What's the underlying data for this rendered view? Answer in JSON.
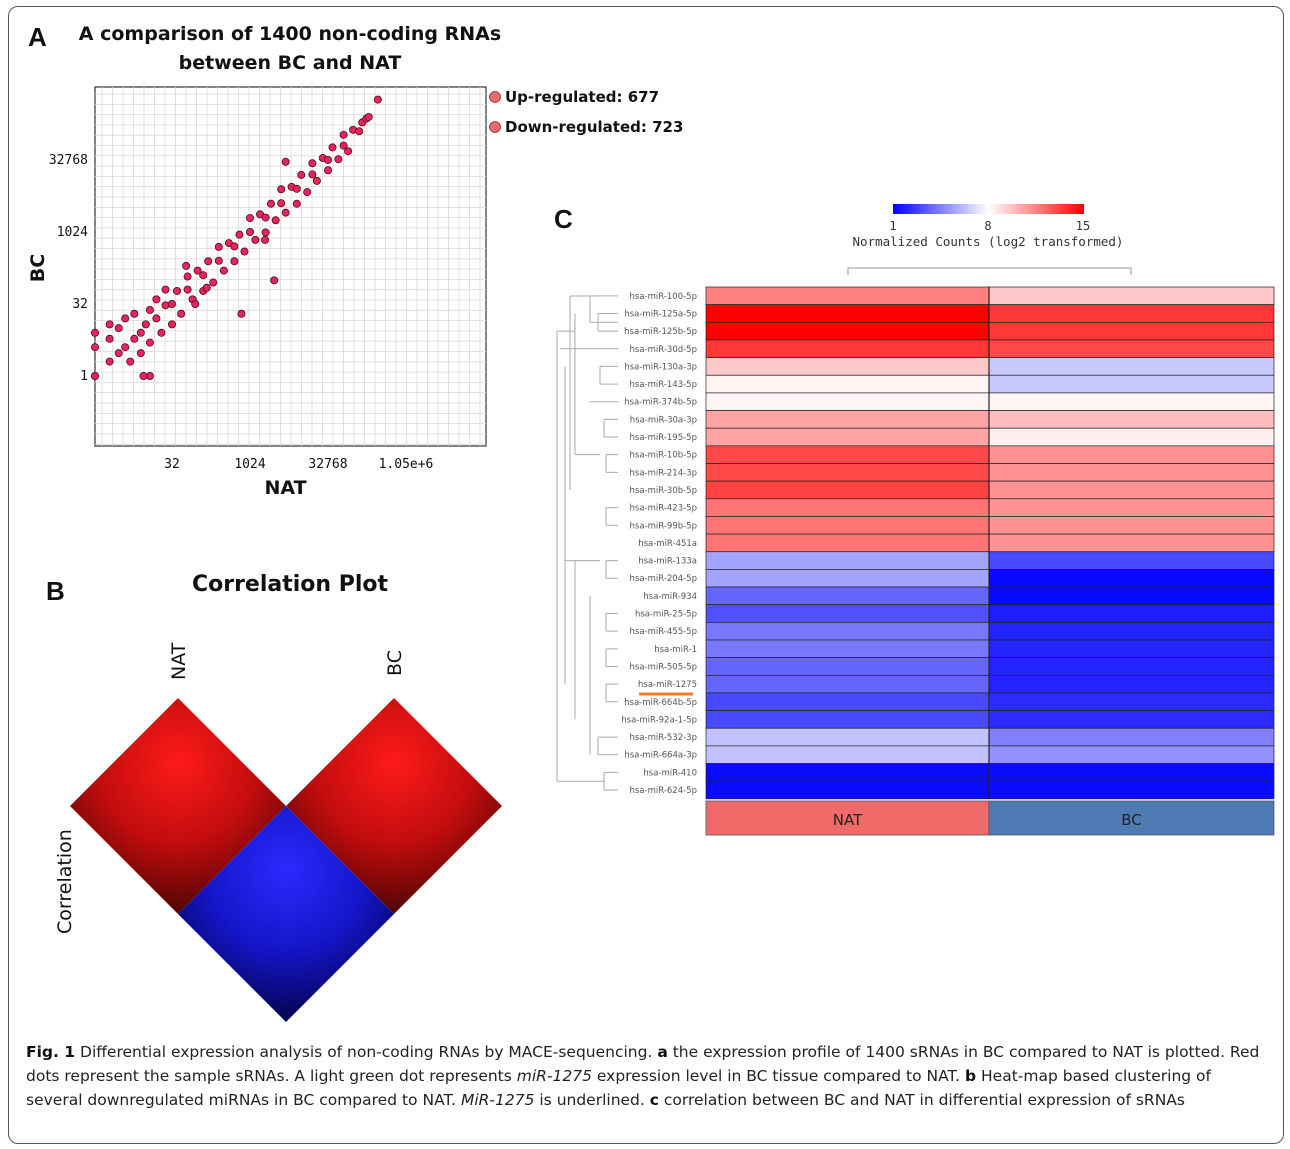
{
  "panel_labels": {
    "a": "A",
    "b": "B",
    "c": "C"
  },
  "chart_data": [
    {
      "type": "scatter",
      "panel": "A",
      "title_line1": "A comparison of 1400 non-coding RNAs",
      "title_line2": "between BC and NAT",
      "xlabel": "NAT",
      "ylabel": "BC",
      "scale": "log2",
      "x_ticks": [
        "32",
        "1024",
        "32768",
        "1.05e+6"
      ],
      "y_ticks": [
        "1",
        "32",
        "1024",
        "32768"
      ],
      "legend": [
        "Up-regulated: 677",
        "Down-regulated: 723"
      ],
      "legend_placement": "right",
      "grid": true,
      "point_color": "#e8245f",
      "points": [
        [
          1,
          1
        ],
        [
          1,
          4
        ],
        [
          1,
          8
        ],
        [
          2,
          2
        ],
        [
          2,
          6
        ],
        [
          2,
          12
        ],
        [
          3,
          3
        ],
        [
          3,
          10
        ],
        [
          4,
          4
        ],
        [
          4,
          16
        ],
        [
          5,
          2
        ],
        [
          6,
          6
        ],
        [
          6,
          20
        ],
        [
          8,
          8
        ],
        [
          8,
          3
        ],
        [
          10,
          12
        ],
        [
          12,
          5
        ],
        [
          12,
          24
        ],
        [
          16,
          16
        ],
        [
          16,
          40
        ],
        [
          20,
          8
        ],
        [
          24,
          30
        ],
        [
          32,
          32
        ],
        [
          32,
          12
        ],
        [
          40,
          60
        ],
        [
          48,
          20
        ],
        [
          64,
          64
        ],
        [
          64,
          120
        ],
        [
          80,
          40
        ],
        [
          100,
          160
        ],
        [
          128,
          128
        ],
        [
          128,
          60
        ],
        [
          160,
          250
        ],
        [
          200,
          90
        ],
        [
          256,
          256
        ],
        [
          256,
          500
        ],
        [
          320,
          160
        ],
        [
          400,
          600
        ],
        [
          512,
          512
        ],
        [
          512,
          250
        ],
        [
          640,
          900
        ],
        [
          800,
          400
        ],
        [
          1024,
          1024
        ],
        [
          1024,
          2000
        ],
        [
          1300,
          700
        ],
        [
          1600,
          2400
        ],
        [
          2048,
          2048
        ],
        [
          2048,
          1000
        ],
        [
          2600,
          4000
        ],
        [
          3200,
          1800
        ],
        [
          4096,
          4096
        ],
        [
          4096,
          8000
        ],
        [
          5000,
          2600
        ],
        [
          6500,
          9000
        ],
        [
          8192,
          8192
        ],
        [
          8192,
          4000
        ],
        [
          10000,
          16000
        ],
        [
          13000,
          7000
        ],
        [
          16384,
          16384
        ],
        [
          16384,
          28000
        ],
        [
          20000,
          12000
        ],
        [
          26000,
          36000
        ],
        [
          32768,
          32768
        ],
        [
          32768,
          20000
        ],
        [
          40000,
          60000
        ],
        [
          52000,
          34000
        ],
        [
          65536,
          65536
        ],
        [
          65536,
          110000
        ],
        [
          80000,
          50000
        ],
        [
          100000,
          140000
        ],
        [
          131072,
          131072
        ],
        [
          150000,
          200000
        ],
        [
          180000,
          240000
        ],
        [
          200000,
          260000
        ],
        [
          3000,
          100
        ],
        [
          700,
          20
        ],
        [
          12,
          1
        ],
        [
          1,
          1
        ],
        [
          9,
          1
        ],
        [
          24,
          64
        ],
        [
          60,
          200
        ],
        [
          90,
          32
        ],
        [
          150,
          70
        ],
        [
          2000,
          700
        ],
        [
          5000,
          30000
        ],
        [
          300000,
          600000
        ]
      ]
    },
    {
      "type": "heatmap",
      "panel": "B",
      "title": "Correlation Plot",
      "row_labels": [
        "NAT",
        "BC"
      ],
      "col_labels": [
        "NAT",
        "BC"
      ],
      "side_label": "Correlation",
      "cells": [
        {
          "pair": "NAT-NAT",
          "color": "red"
        },
        {
          "pair": "BC-BC",
          "color": "red"
        },
        {
          "pair": "NAT-BC",
          "color": "blue"
        }
      ]
    },
    {
      "type": "heatmap",
      "panel": "C",
      "colorbar": {
        "ticks": [
          "1",
          "8",
          "15"
        ],
        "label": "Normalized Counts (log2 transformed)",
        "min": 1,
        "mid": 8,
        "max": 15
      },
      "columns": [
        "NAT",
        "BC"
      ],
      "column_colors": [
        "#f06a6a",
        "#4f7bb5"
      ],
      "highlighted_row": "hsa-miR-1275",
      "highlight_color": "#f07b2b",
      "rows": [
        {
          "label": "hsa-miR-100-5p",
          "values": [
            11.5,
            9.5
          ]
        },
        {
          "label": "hsa-miR-125a-5p",
          "values": [
            15,
            13.5
          ]
        },
        {
          "label": "hsa-miR-125b-5p",
          "values": [
            15,
            13.5
          ]
        },
        {
          "label": "hsa-miR-30d-5p",
          "values": [
            13.5,
            13
          ]
        },
        {
          "label": "hsa-miR-130a-3p",
          "values": [
            9.5,
            6.5
          ]
        },
        {
          "label": "hsa-miR-143-5p",
          "values": [
            8.3,
            6.5
          ]
        },
        {
          "label": "hsa-miR-374b-5p",
          "values": [
            8.3,
            8.3
          ]
        },
        {
          "label": "hsa-miR-30a-3p",
          "values": [
            10.5,
            9.8
          ]
        },
        {
          "label": "hsa-miR-195-5p",
          "values": [
            10.5,
            8.4
          ]
        },
        {
          "label": "hsa-miR-10b-5p",
          "values": [
            13,
            11
          ]
        },
        {
          "label": "hsa-miR-214-3p",
          "values": [
            13,
            11
          ]
        },
        {
          "label": "hsa-miR-30b-5p",
          "values": [
            13.2,
            11
          ]
        },
        {
          "label": "hsa-miR-423-5p",
          "values": [
            11.8,
            11
          ]
        },
        {
          "label": "hsa-miR-99b-5p",
          "values": [
            11.8,
            11
          ]
        },
        {
          "label": "hsa-miR-451a",
          "values": [
            11.8,
            11
          ]
        },
        {
          "label": "hsa-miR-133a",
          "values": [
            5.5,
            3
          ]
        },
        {
          "label": "hsa-miR-204-5p",
          "values": [
            5.5,
            1.2
          ]
        },
        {
          "label": "hsa-miR-934",
          "values": [
            3.8,
            1.2
          ]
        },
        {
          "label": "hsa-miR-25-5p",
          "values": [
            3.2,
            1.8
          ]
        },
        {
          "label": "hsa-miR-455-5p",
          "values": [
            4.3,
            2
          ]
        },
        {
          "label": "hsa-miR-1",
          "values": [
            4.3,
            2
          ]
        },
        {
          "label": "hsa-miR-505-5p",
          "values": [
            3.8,
            2
          ]
        },
        {
          "label": "hsa-miR-1275",
          "values": [
            3.8,
            2
          ]
        },
        {
          "label": "hsa-miR-664b-5p",
          "values": [
            3,
            2.2
          ]
        },
        {
          "label": "hsa-miR-92a-1-5p",
          "values": [
            3,
            2.2
          ]
        },
        {
          "label": "hsa-miR-532-3p",
          "values": [
            6.3,
            4.5
          ]
        },
        {
          "label": "hsa-miR-664a-3p",
          "values": [
            6.3,
            5
          ]
        },
        {
          "label": "hsa-miR-410",
          "values": [
            1.3,
            1.3
          ]
        },
        {
          "label": "hsa-miR-624-5p",
          "values": [
            1.3,
            1.3
          ]
        }
      ]
    }
  ],
  "caption": {
    "fig_label": "Fig. 1",
    "text1": " Differential expression analysis of non-coding RNAs by MACE-sequencing. ",
    "a": "a",
    "text2": " the expression profile of 1400 sRNAs in BC compared to NAT is plotted. Red dots represent the sample sRNAs. A light green dot represents ",
    "mir1": "miR-1275",
    "text3": " expression level in BC tissue compared to NAT. ",
    "b": "b",
    "text4": " Heat-map based clustering of several downregulated miRNAs in BC compared to NAT. ",
    "mir2": "MiR-1275",
    "text5": " is underlined. ",
    "c": "c",
    "text6": " correlation between BC and NAT in differential expression of sRNAs"
  }
}
